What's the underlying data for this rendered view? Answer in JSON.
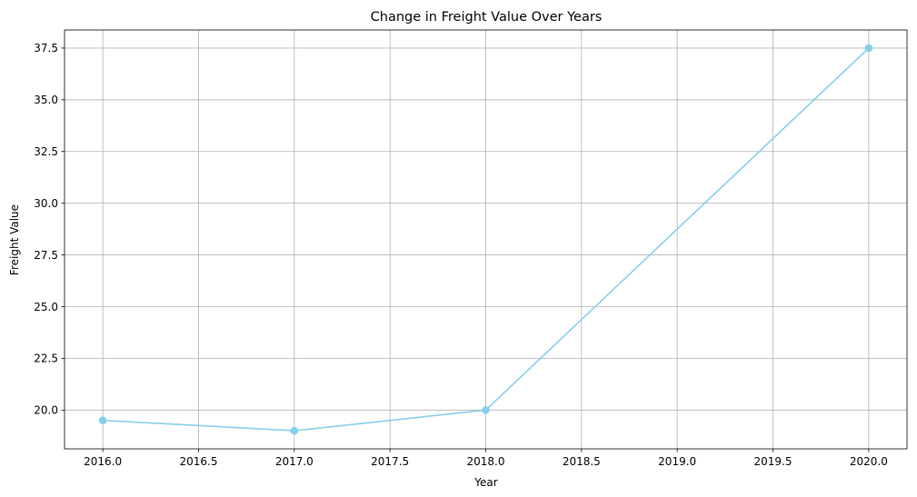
{
  "chart_data": {
    "type": "line",
    "title": "Change in Freight Value Over Years",
    "xlabel": "Year",
    "ylabel": "Freight Value",
    "x": [
      2016,
      2017,
      2018,
      2020
    ],
    "series": [
      {
        "values": [
          19.5,
          19.0,
          20.0,
          37.5
        ],
        "color": "#87CEEB",
        "marker": "circle"
      }
    ],
    "xlim": [
      2015.8,
      2020.2
    ],
    "ylim": [
      18.125,
      38.375
    ],
    "xticks": [
      "2016.0",
      "2016.5",
      "2017.0",
      "2017.5",
      "2018.0",
      "2018.5",
      "2019.0",
      "2019.5",
      "2020.0"
    ],
    "yticks": [
      "20.0",
      "22.5",
      "25.0",
      "27.5",
      "30.0",
      "32.5",
      "35.0",
      "37.5"
    ],
    "grid": true,
    "legend": "none"
  }
}
